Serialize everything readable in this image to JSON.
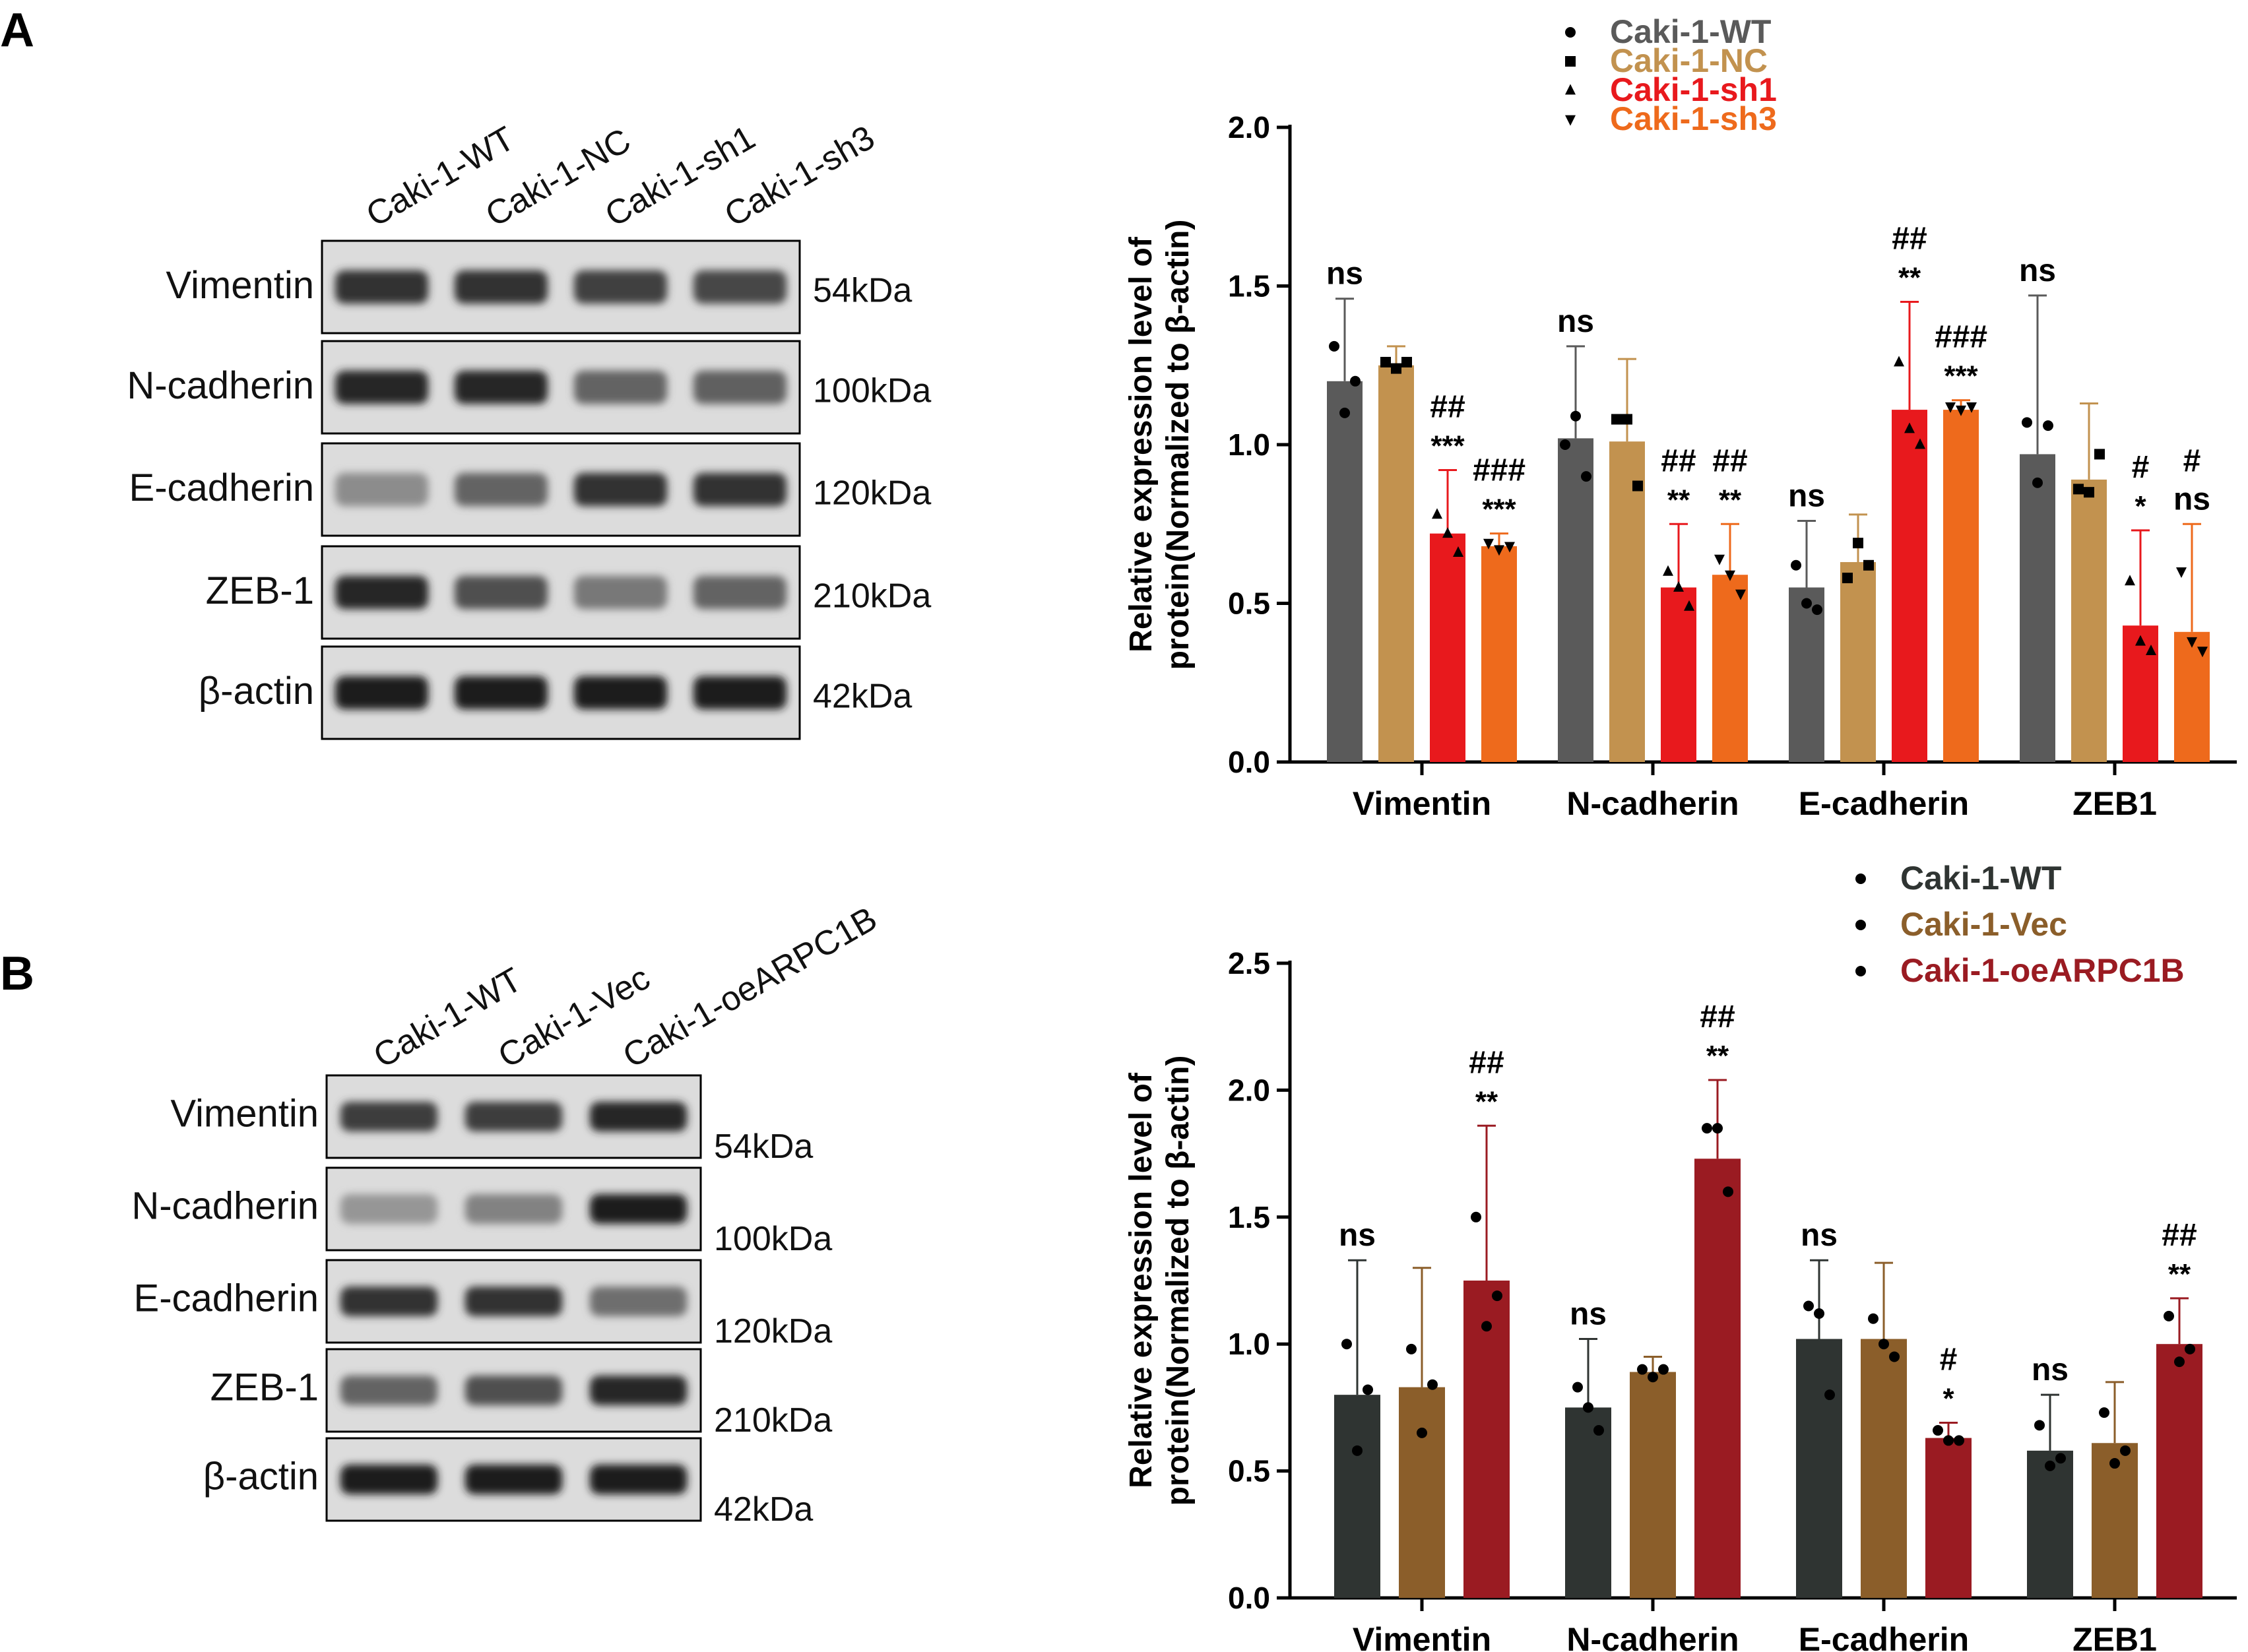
{
  "panels": [
    {
      "letter": "A",
      "blot": {
        "lanes": [
          "Caki-1-WT",
          "Caki-1-NC",
          "Caki-1-sh1",
          "Caki-1-sh3"
        ],
        "rows": [
          {
            "protein": "Vimentin",
            "kda": "54kDa",
            "intensity": [
              0.85,
              0.85,
              0.78,
              0.75
            ]
          },
          {
            "protein": "N-cadherin",
            "kda": "100kDa",
            "intensity": [
              0.9,
              0.9,
              0.6,
              0.62
            ]
          },
          {
            "protein": "E-cadherin",
            "kda": "120kDa",
            "intensity": [
              0.4,
              0.6,
              0.85,
              0.85
            ]
          },
          {
            "protein": "ZEB-1",
            "kda": "210kDa",
            "intensity": [
              0.9,
              0.7,
              0.5,
              0.6
            ]
          },
          {
            "protein": "β-actin",
            "kda": "42kDa",
            "intensity": [
              0.95,
              0.95,
              0.95,
              0.95
            ]
          }
        ]
      }
    },
    {
      "letter": "B",
      "blot": {
        "lanes": [
          "Caki-1-WT",
          "Caki-1-Vec",
          "Caki-1-oeARPC1B"
        ],
        "rows": [
          {
            "protein": "Vimentin",
            "kda": "54kDa",
            "intensity": [
              0.8,
              0.8,
              0.9
            ]
          },
          {
            "protein": "N-cadherin",
            "kda": "100kDa",
            "intensity": [
              0.35,
              0.45,
              0.95
            ]
          },
          {
            "protein": "E-cadherin",
            "kda": "120kDa",
            "intensity": [
              0.85,
              0.85,
              0.55
            ]
          },
          {
            "protein": "ZEB-1",
            "kda": "210kDa",
            "intensity": [
              0.6,
              0.7,
              0.9
            ]
          },
          {
            "protein": "β-actin",
            "kda": "42kDa",
            "intensity": [
              0.95,
              0.95,
              0.95
            ]
          }
        ]
      }
    }
  ],
  "chart_data": [
    {
      "type": "bar",
      "panel": "A",
      "title": "",
      "xlabel": "",
      "ylabel": "Relative expression level of protein(Normalized to β-actin)",
      "ylim": [
        0,
        2.0
      ],
      "yticks": [
        "0.0",
        "0.5",
        "1.0",
        "1.5",
        "2.0"
      ],
      "ytick_values": [
        0,
        0.5,
        1.0,
        1.5,
        2.0
      ],
      "categories": [
        "Vimentin",
        "N-cadherin",
        "E-cadherin",
        "ZEB1"
      ],
      "legend_position": "top-right",
      "series": [
        {
          "name": "Caki-1-WT",
          "color": "#5a5a5a",
          "marker": "circle",
          "values": [
            1.2,
            1.02,
            0.55,
            0.97
          ],
          "errors": [
            0.26,
            0.29,
            0.21,
            0.5
          ],
          "points": [
            [
              1.31,
              1.1,
              1.2
            ],
            [
              1.0,
              1.09,
              0.9
            ],
            [
              0.62,
              0.5,
              0.48
            ],
            [
              1.07,
              0.88,
              1.06
            ]
          ],
          "annotations": [
            [
              "ns"
            ],
            [
              "ns"
            ],
            [
              "ns"
            ],
            [
              "ns"
            ]
          ]
        },
        {
          "name": "Caki-1-NC",
          "color": "#c2924f",
          "marker": "square",
          "values": [
            1.25,
            1.01,
            0.63,
            0.89
          ],
          "errors": [
            0.06,
            0.26,
            0.15,
            0.24
          ],
          "points": [
            [
              1.26,
              1.24,
              1.26
            ],
            [
              1.08,
              1.08,
              0.87
            ],
            [
              0.58,
              0.69,
              0.62
            ],
            [
              0.86,
              0.85,
              0.97
            ]
          ],
          "annotations": [
            [],
            [],
            [],
            []
          ]
        },
        {
          "name": "Caki-1-sh1",
          "color": "#e8191d",
          "marker": "triangle-up",
          "values": [
            0.72,
            0.55,
            1.11,
            0.43
          ],
          "errors": [
            0.2,
            0.2,
            0.34,
            0.3
          ],
          "points": [
            [
              0.78,
              0.72,
              0.66
            ],
            [
              0.6,
              0.55,
              0.49
            ],
            [
              1.26,
              1.05,
              1.0
            ],
            [
              0.57,
              0.38,
              0.35
            ]
          ],
          "annotations": [
            [
              "***",
              "##"
            ],
            [
              "**",
              "##"
            ],
            [
              "**",
              "##"
            ],
            [
              "*",
              "#"
            ]
          ]
        },
        {
          "name": "Caki-1-sh3",
          "color": "#ee6a1c",
          "marker": "triangle-down",
          "values": [
            0.68,
            0.59,
            1.11,
            0.41
          ],
          "errors": [
            0.04,
            0.16,
            0.03,
            0.34
          ],
          "points": [
            [
              0.69,
              0.67,
              0.68
            ],
            [
              0.64,
              0.59,
              0.53
            ],
            [
              1.12,
              1.11,
              1.12
            ],
            [
              0.6,
              0.38,
              0.35
            ]
          ],
          "annotations": [
            [
              "***",
              "###"
            ],
            [
              "**",
              "##"
            ],
            [
              "***",
              "###"
            ],
            [
              "ns",
              "#"
            ]
          ]
        }
      ]
    },
    {
      "type": "bar",
      "panel": "B",
      "title": "",
      "xlabel": "",
      "ylabel": "Relative expression level of protein(Normalized to β-actin)",
      "ylim": [
        0,
        2.5
      ],
      "yticks": [
        "0.0",
        "0.5",
        "1.0",
        "1.5",
        "2.0",
        "2.5"
      ],
      "ytick_values": [
        0,
        0.5,
        1.0,
        1.5,
        2.0,
        2.5
      ],
      "categories": [
        "Vimentin",
        "N-cadherin",
        "E-cadherin",
        "ZEB1"
      ],
      "legend_position": "top-right",
      "series": [
        {
          "name": "Caki-1-WT",
          "color": "#2f3432",
          "marker": "circle",
          "values": [
            0.8,
            0.75,
            1.02,
            0.58
          ],
          "errors": [
            0.53,
            0.27,
            0.31,
            0.22
          ],
          "points": [
            [
              1.0,
              0.58,
              0.82
            ],
            [
              0.83,
              0.75,
              0.66
            ],
            [
              1.15,
              1.12,
              0.8
            ],
            [
              0.68,
              0.52,
              0.55
            ]
          ],
          "annotations": [
            [
              "ns"
            ],
            [
              "ns"
            ],
            [
              "ns"
            ],
            [
              "ns"
            ]
          ]
        },
        {
          "name": "Caki-1-Vec",
          "color": "#8b5e2a",
          "marker": "circle",
          "values": [
            0.83,
            0.89,
            1.02,
            0.61
          ],
          "errors": [
            0.47,
            0.06,
            0.3,
            0.24
          ],
          "points": [
            [
              0.98,
              0.65,
              0.84
            ],
            [
              0.9,
              0.87,
              0.9
            ],
            [
              1.1,
              1.0,
              0.95
            ],
            [
              0.73,
              0.53,
              0.58
            ]
          ],
          "annotations": [
            [],
            [],
            [],
            []
          ]
        },
        {
          "name": "Caki-1-oeARPC1B",
          "color": "#9a1b22",
          "marker": "circle",
          "values": [
            1.25,
            1.73,
            0.63,
            1.0
          ],
          "errors": [
            0.61,
            0.31,
            0.06,
            0.18
          ],
          "points": [
            [
              1.5,
              1.07,
              1.19
            ],
            [
              1.85,
              1.85,
              1.6
            ],
            [
              0.66,
              0.62,
              0.62
            ],
            [
              1.11,
              0.93,
              0.98
            ]
          ],
          "annotations": [
            [
              "**",
              "##"
            ],
            [
              "**",
              "##"
            ],
            [
              "*",
              "#"
            ],
            [
              "**",
              "##"
            ]
          ]
        }
      ]
    }
  ]
}
